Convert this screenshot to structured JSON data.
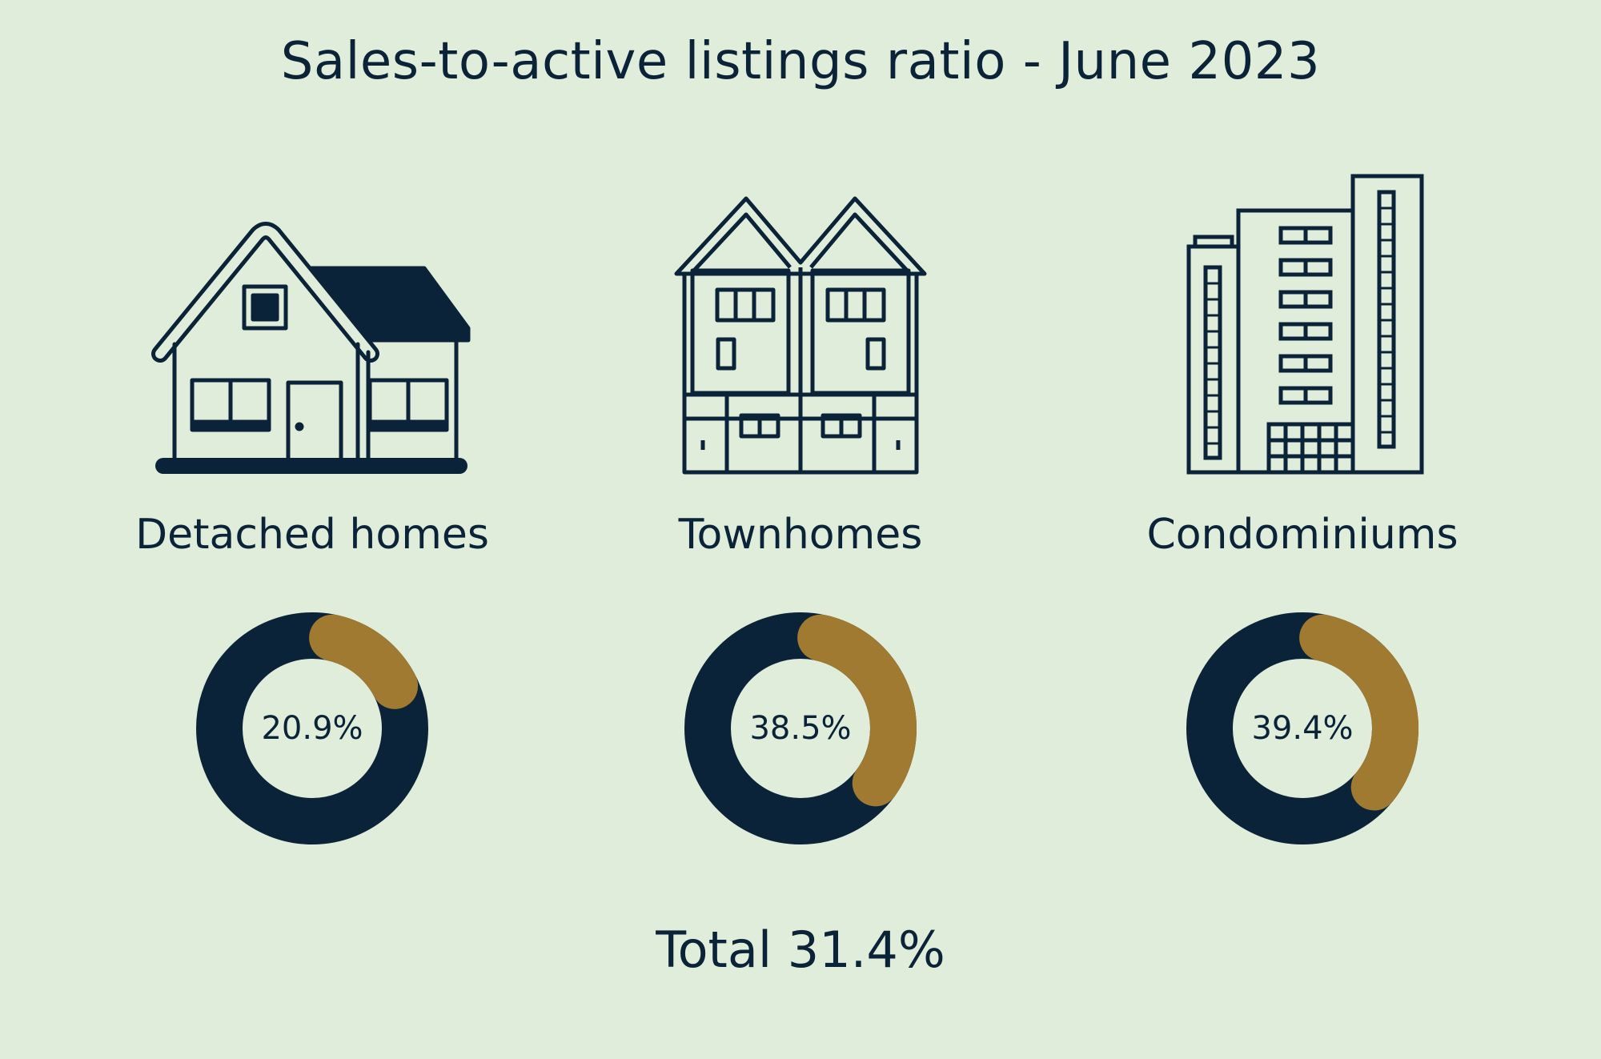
{
  "chart_data": {
    "type": "pie",
    "variant": "donut",
    "title": "Sales-to-active listings ratio - June 2023",
    "categories": [
      "Detached homes",
      "Townhomes",
      "Condominiums"
    ],
    "values": [
      20.9,
      38.5,
      39.4
    ],
    "unit": "%",
    "value_labels": [
      "20.9%",
      "38.5%",
      "39.4%"
    ],
    "total_label": "Total 31.4%",
    "total": 31.4,
    "colors": {
      "value": "#a07a31",
      "remainder": "#0b2338",
      "background": "#e1eddb"
    },
    "icons": [
      "detached-house-icon",
      "townhouse-icon",
      "condo-tower-icon"
    ]
  }
}
